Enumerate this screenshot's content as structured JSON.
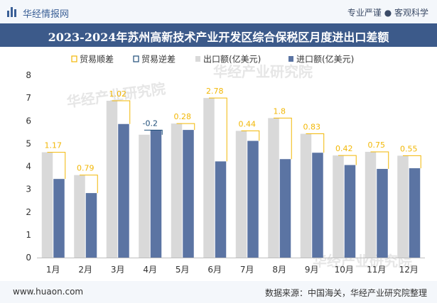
{
  "header": {
    "brand": "华经情报网",
    "tagline": "专业严谨 ● 客观科学"
  },
  "title": "2023-2024年苏州高新技术产业开发区综合保税区月度进出口差额",
  "footer": {
    "url": "www.huaon.com",
    "source": "数据来源：中国海关，华经产业研究院整理"
  },
  "watermark": "华经产业研究院",
  "colors": {
    "export": "#d9d9d9",
    "import": "#5b74a3",
    "surplus": "#f2b705",
    "deficit": "#1f4e79",
    "title_bg": "#3c5a8a"
  },
  "chart_data": {
    "type": "bar",
    "categories": [
      "1月",
      "2月",
      "3月",
      "4月",
      "5月",
      "6月",
      "7月",
      "8月",
      "9月",
      "10月",
      "11月",
      "12月"
    ],
    "ylim": [
      0,
      8
    ],
    "yticks": [
      0,
      1,
      2,
      3,
      4,
      5,
      6,
      7,
      8
    ],
    "grid": false,
    "legend_position": "top",
    "legend": [
      "贸易顺差",
      "贸易逆差",
      "出口额(亿美元)",
      "进口额(亿美元)"
    ],
    "series": [
      {
        "name": "出口额(亿美元)",
        "values": [
          4.62,
          3.62,
          6.88,
          5.39,
          5.88,
          7.0,
          5.56,
          6.12,
          5.43,
          4.48,
          4.64,
          4.47
        ]
      },
      {
        "name": "进口额(亿美元)",
        "values": [
          3.45,
          2.83,
          5.86,
          5.59,
          5.6,
          4.22,
          5.12,
          4.32,
          4.6,
          4.06,
          3.89,
          3.92
        ]
      }
    ],
    "balance": [
      "1.17",
      "0.79",
      "1.02",
      "-0.2",
      "0.28",
      "2.78",
      "0.44",
      "1.8",
      "0.83",
      "0.42",
      "0.75",
      "0.55"
    ]
  }
}
